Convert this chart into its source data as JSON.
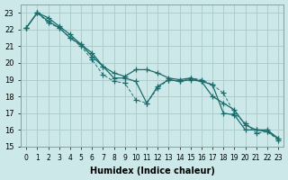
{
  "xlabel": "Humidex (Indice chaleur)",
  "background_color": "#cde8e8",
  "grid_color": "#aecece",
  "line_color": "#1a6b6b",
  "x_values": [
    0,
    1,
    2,
    3,
    4,
    5,
    6,
    7,
    8,
    9,
    10,
    11,
    12,
    13,
    14,
    15,
    16,
    17,
    18,
    19,
    20,
    21,
    22,
    23
  ],
  "line1": [
    22.1,
    23.0,
    22.7,
    22.2,
    21.7,
    21.1,
    20.6,
    19.8,
    19.4,
    19.2,
    19.6,
    19.6,
    19.4,
    19.1,
    19.0,
    19.1,
    18.9,
    18.0,
    17.6,
    17.2,
    16.3,
    16.0,
    16.0,
    15.5
  ],
  "line2": [
    22.1,
    23.0,
    22.4,
    22.1,
    21.5,
    21.0,
    20.2,
    19.3,
    18.9,
    18.8,
    17.8,
    17.6,
    18.5,
    19.0,
    18.9,
    19.1,
    19.0,
    18.7,
    18.2,
    17.0,
    16.4,
    15.8,
    15.9,
    15.4
  ],
  "line3": [
    22.1,
    23.0,
    22.5,
    22.1,
    21.5,
    21.1,
    20.4,
    19.8,
    19.1,
    19.1,
    18.9,
    17.6,
    18.6,
    19.0,
    18.9,
    19.0,
    18.9,
    18.7,
    17.0,
    16.9,
    16.0,
    16.0,
    15.9,
    15.5
  ],
  "ylim_min": 15,
  "ylim_max": 23.5,
  "yticks": [
    15,
    16,
    17,
    18,
    19,
    20,
    21,
    22,
    23
  ],
  "line1_lw": 0.9,
  "line2_lw": 0.65,
  "line3_lw": 0.9,
  "marker_size": 4,
  "marker_ew": 0.9
}
